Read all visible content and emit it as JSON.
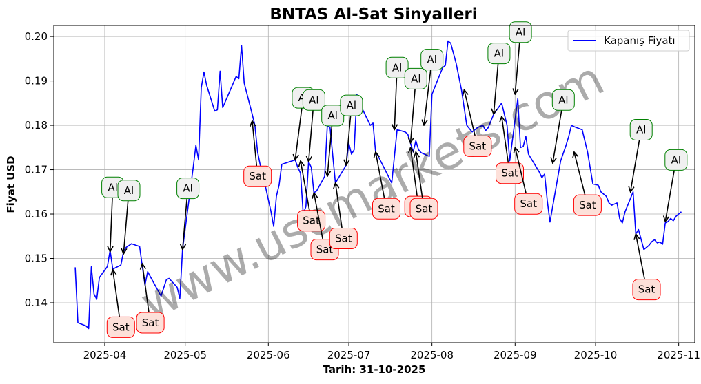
{
  "chart_data": {
    "type": "line",
    "title": "BNTAS Al-Sat Sinyalleri",
    "xlabel": "Tarih: 31-10-2025",
    "ylabel": "Fiyat USD",
    "watermark": "www.uscmarkets.com",
    "grid": true,
    "legend_position": "top-right",
    "x_range": [
      "2025-03-13",
      "2025-11-07"
    ],
    "ylim": [
      0.131,
      0.2025
    ],
    "x_ticks": [
      "2025-04-01",
      "2025-05-01",
      "2025-06-01",
      "2025-07-01",
      "2025-08-01",
      "2025-09-01",
      "2025-10-01",
      "2025-11-01"
    ],
    "x_tick_labels": [
      "2025-04",
      "2025-05",
      "2025-06",
      "2025-07",
      "2025-08",
      "2025-09",
      "2025-10",
      "2025-11"
    ],
    "y_ticks": [
      0.14,
      0.15,
      0.16,
      0.17,
      0.18,
      0.19,
      0.2
    ],
    "y_tick_labels": [
      "0.14",
      "0.15",
      "0.16",
      "0.17",
      "0.18",
      "0.19",
      "0.20"
    ],
    "series": [
      {
        "name": "Kapanış Fiyatı",
        "color": "#0000ff",
        "points": [
          [
            "2025-03-21",
            0.148
          ],
          [
            "2025-03-22",
            0.1355
          ],
          [
            "2025-03-25",
            0.1348
          ],
          [
            "2025-03-26",
            0.1342
          ],
          [
            "2025-03-27",
            0.1481
          ],
          [
            "2025-03-28",
            0.142
          ],
          [
            "2025-03-29",
            0.1408
          ],
          [
            "2025-03-30",
            0.1457
          ],
          [
            "2025-04-02",
            0.1482
          ],
          [
            "2025-04-03",
            0.1518
          ],
          [
            "2025-04-04",
            0.1476
          ],
          [
            "2025-04-07",
            0.1485
          ],
          [
            "2025-04-08",
            0.1515
          ],
          [
            "2025-04-09",
            0.1525
          ],
          [
            "2025-04-11",
            0.1533
          ],
          [
            "2025-04-14",
            0.1527
          ],
          [
            "2025-04-15",
            0.1483
          ],
          [
            "2025-04-16",
            0.144
          ],
          [
            "2025-04-17",
            0.147
          ],
          [
            "2025-04-22",
            0.1415
          ],
          [
            "2025-04-24",
            0.1452
          ],
          [
            "2025-04-25",
            0.1455
          ],
          [
            "2025-04-28",
            0.1435
          ],
          [
            "2025-04-29",
            0.141
          ],
          [
            "2025-04-30",
            0.152
          ],
          [
            "2025-05-03",
            0.166
          ],
          [
            "2025-05-04",
            0.1705
          ],
          [
            "2025-05-05",
            0.1755
          ],
          [
            "2025-05-06",
            0.1722
          ],
          [
            "2025-05-07",
            0.1885
          ],
          [
            "2025-05-08",
            0.192
          ],
          [
            "2025-05-09",
            0.189
          ],
          [
            "2025-05-12",
            0.1832
          ],
          [
            "2025-05-13",
            0.1835
          ],
          [
            "2025-05-14",
            0.1922
          ],
          [
            "2025-05-15",
            0.184
          ],
          [
            "2025-05-20",
            0.191
          ],
          [
            "2025-05-21",
            0.1905
          ],
          [
            "2025-05-22",
            0.198
          ],
          [
            "2025-05-23",
            0.1895
          ],
          [
            "2025-05-26",
            0.1825
          ],
          [
            "2025-05-27",
            0.18
          ],
          [
            "2025-05-28",
            0.174
          ],
          [
            "2025-05-29",
            0.171
          ],
          [
            "2025-05-31",
            0.166
          ],
          [
            "2025-06-02",
            0.1605
          ],
          [
            "2025-06-03",
            0.1572
          ],
          [
            "2025-06-04",
            0.164
          ],
          [
            "2025-06-05",
            0.1665
          ],
          [
            "2025-06-06",
            0.1712
          ],
          [
            "2025-06-11",
            0.1722
          ],
          [
            "2025-06-12",
            0.1705
          ],
          [
            "2025-06-13",
            0.1692
          ],
          [
            "2025-06-14",
            0.16
          ],
          [
            "2025-06-15",
            0.1617
          ],
          [
            "2025-06-16",
            0.1718
          ],
          [
            "2025-06-17",
            0.1705
          ],
          [
            "2025-06-18",
            0.1648
          ],
          [
            "2025-06-19",
            0.1652
          ],
          [
            "2025-06-22",
            0.1685
          ],
          [
            "2025-06-23",
            0.18
          ],
          [
            "2025-06-24",
            0.1795
          ],
          [
            "2025-06-26",
            0.167
          ],
          [
            "2025-06-28",
            0.169
          ],
          [
            "2025-06-30",
            0.171
          ],
          [
            "2025-07-01",
            0.176
          ],
          [
            "2025-07-02",
            0.1735
          ],
          [
            "2025-07-03",
            0.1745
          ],
          [
            "2025-07-04",
            0.187
          ],
          [
            "2025-07-05",
            0.185
          ],
          [
            "2025-07-07",
            0.1825
          ],
          [
            "2025-07-09",
            0.18
          ],
          [
            "2025-07-10",
            0.1805
          ],
          [
            "2025-07-11",
            0.174
          ],
          [
            "2025-07-12",
            0.173
          ],
          [
            "2025-07-17",
            0.167
          ],
          [
            "2025-07-19",
            0.179
          ],
          [
            "2025-07-22",
            0.1785
          ],
          [
            "2025-07-23",
            0.178
          ],
          [
            "2025-07-24",
            0.176
          ],
          [
            "2025-07-25",
            0.174
          ],
          [
            "2025-07-26",
            0.1765
          ],
          [
            "2025-07-27",
            0.1745
          ],
          [
            "2025-07-28",
            0.1738
          ],
          [
            "2025-07-31",
            0.173
          ],
          [
            "2025-08-01",
            0.187
          ],
          [
            "2025-08-03",
            0.19
          ],
          [
            "2025-08-05",
            0.193
          ],
          [
            "2025-08-06",
            0.1935
          ],
          [
            "2025-08-07",
            0.199
          ],
          [
            "2025-08-08",
            0.1985
          ],
          [
            "2025-08-10",
            0.194
          ],
          [
            "2025-08-12",
            0.188
          ],
          [
            "2025-08-14",
            0.18
          ],
          [
            "2025-08-16",
            0.1785
          ],
          [
            "2025-08-18",
            0.1795
          ],
          [
            "2025-08-20",
            0.18
          ],
          [
            "2025-08-21",
            0.1788
          ],
          [
            "2025-08-22",
            0.1795
          ],
          [
            "2025-08-24",
            0.1825
          ],
          [
            "2025-08-27",
            0.185
          ],
          [
            "2025-08-29",
            0.18
          ],
          [
            "2025-08-30",
            0.172
          ],
          [
            "2025-09-02",
            0.186
          ],
          [
            "2025-09-03",
            0.175
          ],
          [
            "2025-09-04",
            0.1752
          ],
          [
            "2025-09-05",
            0.1775
          ],
          [
            "2025-09-06",
            0.1735
          ],
          [
            "2025-09-10",
            0.1695
          ],
          [
            "2025-09-11",
            0.1682
          ],
          [
            "2025-09-12",
            0.169
          ],
          [
            "2025-09-13",
            0.163
          ],
          [
            "2025-09-14",
            0.1582
          ],
          [
            "2025-09-17",
            0.1685
          ],
          [
            "2025-09-18",
            0.172
          ],
          [
            "2025-09-20",
            0.1755
          ],
          [
            "2025-09-21",
            0.1775
          ],
          [
            "2025-09-22",
            0.18
          ],
          [
            "2025-09-23",
            0.1797
          ],
          [
            "2025-09-26",
            0.179
          ],
          [
            "2025-09-28",
            0.174
          ],
          [
            "2025-09-30",
            0.1668
          ],
          [
            "2025-10-02",
            0.1665
          ],
          [
            "2025-10-03",
            0.165
          ],
          [
            "2025-10-05",
            0.164
          ],
          [
            "2025-10-06",
            0.1625
          ],
          [
            "2025-10-07",
            0.162
          ],
          [
            "2025-10-09",
            0.1625
          ],
          [
            "2025-10-10",
            0.159
          ],
          [
            "2025-10-11",
            0.158
          ],
          [
            "2025-10-12",
            0.1605
          ],
          [
            "2025-10-15",
            0.165
          ],
          [
            "2025-10-16",
            0.1555
          ],
          [
            "2025-10-17",
            0.1565
          ],
          [
            "2025-10-19",
            0.152
          ],
          [
            "2025-10-21",
            0.153
          ],
          [
            "2025-10-22",
            0.1538
          ],
          [
            "2025-10-23",
            0.1542
          ],
          [
            "2025-10-24",
            0.1535
          ],
          [
            "2025-10-25",
            0.1537
          ],
          [
            "2025-10-26",
            0.1532
          ],
          [
            "2025-10-27",
            0.158
          ],
          [
            "2025-10-28",
            0.1583
          ],
          [
            "2025-10-29",
            0.159
          ],
          [
            "2025-10-30",
            0.1585
          ],
          [
            "2025-10-31",
            0.1595
          ],
          [
            "2025-11-02",
            0.1605
          ]
        ]
      }
    ],
    "signals": [
      {
        "label": "Al",
        "type": "buy",
        "target": [
          "2025-04-03",
          0.1515
        ],
        "text_at": [
          "2025-04-04",
          0.166
        ]
      },
      {
        "label": "Al",
        "type": "buy",
        "target": [
          "2025-04-08",
          0.151
        ],
        "text_at": [
          "2025-04-10",
          0.1653
        ]
      },
      {
        "label": "Sat",
        "type": "sell",
        "target": [
          "2025-04-04",
          0.1475
        ],
        "text_at": [
          "2025-04-07",
          0.1345
        ]
      },
      {
        "label": "Sat",
        "type": "sell",
        "target": [
          "2025-04-15",
          0.1488
        ],
        "text_at": [
          "2025-04-18",
          0.1355
        ]
      },
      {
        "label": "Al",
        "type": "buy",
        "target": [
          "2025-04-30",
          0.152
        ],
        "text_at": [
          "2025-05-02",
          0.1658
        ]
      },
      {
        "label": "Sat",
        "type": "sell",
        "target": [
          "2025-05-26",
          0.181
        ],
        "text_at": [
          "2025-05-28",
          0.1685
        ]
      },
      {
        "label": "Al",
        "type": "buy",
        "target": [
          "2025-06-11",
          0.1722
        ],
        "text_at": [
          "2025-06-14",
          0.1862
        ]
      },
      {
        "label": "Al",
        "type": "buy",
        "target": [
          "2025-06-16",
          0.1718
        ],
        "text_at": [
          "2025-06-18",
          0.1857
        ]
      },
      {
        "label": "Sat",
        "type": "sell",
        "target": [
          "2025-06-13",
          0.172
        ],
        "text_at": [
          "2025-06-17",
          0.1585
        ]
      },
      {
        "label": "Al",
        "type": "buy",
        "target": [
          "2025-06-23",
          0.1685
        ],
        "text_at": [
          "2025-06-25",
          0.1822
        ]
      },
      {
        "label": "Al",
        "type": "buy",
        "target": [
          "2025-06-30",
          0.171
        ],
        "text_at": [
          "2025-07-02",
          0.1845
        ]
      },
      {
        "label": "Sat",
        "type": "sell",
        "target": [
          "2025-06-18",
          0.1648
        ],
        "text_at": [
          "2025-06-22",
          0.152
        ]
      },
      {
        "label": "Sat",
        "type": "sell",
        "target": [
          "2025-06-26",
          0.167
        ],
        "text_at": [
          "2025-06-29",
          0.1545
        ]
      },
      {
        "label": "Al",
        "type": "buy",
        "target": [
          "2025-07-18",
          0.179
        ],
        "text_at": [
          "2025-07-19",
          0.193
        ]
      },
      {
        "label": "Sat",
        "type": "sell",
        "target": [
          "2025-07-11",
          0.174
        ],
        "text_at": [
          "2025-07-15",
          0.1612
        ]
      },
      {
        "label": "Al",
        "type": "buy",
        "target": [
          "2025-07-24",
          0.176
        ],
        "text_at": [
          "2025-07-26",
          0.1905
        ]
      },
      {
        "label": "Al",
        "type": "buy",
        "target": [
          "2025-07-29",
          0.18
        ],
        "text_at": [
          "2025-08-01",
          0.1948
        ]
      },
      {
        "label": "Sat",
        "type": "sell",
        "target": [
          "2025-07-24",
          0.175
        ],
        "text_at": [
          "2025-07-27",
          0.1617
        ]
      },
      {
        "label": "Sat",
        "type": "sell",
        "target": [
          "2025-07-26",
          0.174
        ],
        "text_at": [
          "2025-07-29",
          0.1612
        ]
      },
      {
        "label": "Sat",
        "type": "sell",
        "target": [
          "2025-08-13",
          0.188
        ],
        "text_at": [
          "2025-08-18",
          0.1753
        ]
      },
      {
        "label": "Al",
        "type": "buy",
        "target": [
          "2025-08-24",
          0.1825
        ],
        "text_at": [
          "2025-08-26",
          0.1962
        ]
      },
      {
        "label": "Sat",
        "type": "sell",
        "target": [
          "2025-08-27",
          0.182
        ],
        "text_at": [
          "2025-08-30",
          0.1692
        ]
      },
      {
        "label": "Al",
        "type": "buy",
        "target": [
          "2025-09-01",
          0.187
        ],
        "text_at": [
          "2025-09-03",
          0.201
        ]
      },
      {
        "label": "Sat",
        "type": "sell",
        "target": [
          "2025-09-01",
          0.175
        ],
        "text_at": [
          "2025-09-06",
          0.1623
        ]
      },
      {
        "label": "Al",
        "type": "buy",
        "target": [
          "2025-09-15",
          0.1715
        ],
        "text_at": [
          "2025-09-19",
          0.1857
        ]
      },
      {
        "label": "Sat",
        "type": "sell",
        "target": [
          "2025-09-23",
          0.174
        ],
        "text_at": [
          "2025-09-28",
          0.162
        ]
      },
      {
        "label": "Al",
        "type": "buy",
        "target": [
          "2025-10-14",
          0.165
        ],
        "text_at": [
          "2025-10-18",
          0.179
        ]
      },
      {
        "label": "Sat",
        "type": "sell",
        "target": [
          "2025-10-16",
          0.1555
        ],
        "text_at": [
          "2025-10-20",
          0.143
        ]
      },
      {
        "label": "Al",
        "type": "buy",
        "target": [
          "2025-10-27",
          0.1583
        ],
        "text_at": [
          "2025-10-31",
          0.1722
        ]
      }
    ]
  }
}
